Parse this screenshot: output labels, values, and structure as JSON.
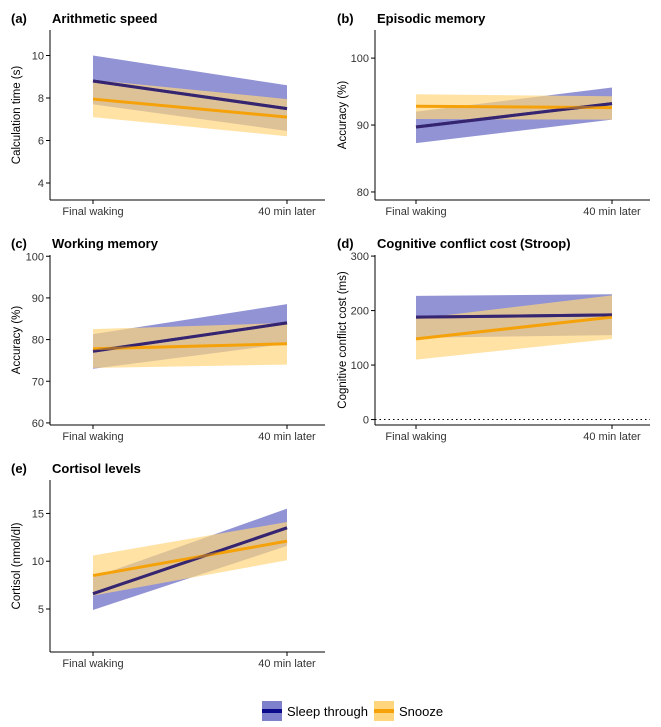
{
  "colors": {
    "sleep_line": "#0a0a8a",
    "sleep_band": "#7e80cc",
    "snooze_line": "#f5a20a",
    "snooze_band": "#ffd57e"
  },
  "legend": {
    "items": [
      {
        "key": "sleep",
        "label": "Sleep through"
      },
      {
        "key": "snooze",
        "label": "Snooze"
      }
    ]
  },
  "chart_data": [
    {
      "id": "a",
      "panel_label": "(a)",
      "title": "Arithmetic speed",
      "type": "line",
      "ylabel": "Calculation time (s)",
      "categories": [
        "Final waking",
        "40 min later"
      ],
      "ylim": [
        3.2,
        11.2
      ],
      "yticks": [
        "4",
        "6",
        "8",
        "10"
      ],
      "ytick_values": [
        4,
        6,
        8,
        10
      ],
      "series": [
        {
          "name": "Sleep through",
          "values": [
            8.8,
            7.5
          ],
          "ci_low": [
            7.7,
            6.45
          ],
          "ci_high": [
            10.0,
            8.6
          ]
        },
        {
          "name": "Snooze",
          "values": [
            7.95,
            7.1
          ],
          "ci_low": [
            7.1,
            6.2
          ],
          "ci_high": [
            8.85,
            7.95
          ]
        }
      ]
    },
    {
      "id": "b",
      "panel_label": "(b)",
      "title": "Episodic memory",
      "type": "line",
      "ylabel": "Accuracy (%)",
      "categories": [
        "Final waking",
        "40 min later"
      ],
      "ylim": [
        78.8,
        104.2
      ],
      "yticks": [
        "80",
        "90",
        "100"
      ],
      "ytick_values": [
        80,
        90,
        100
      ],
      "series": [
        {
          "name": "Sleep through",
          "values": [
            89.7,
            93.2
          ],
          "ci_low": [
            87.3,
            90.8
          ],
          "ci_high": [
            92.0,
            95.6
          ]
        },
        {
          "name": "Snooze",
          "values": [
            92.8,
            92.6
          ],
          "ci_low": [
            90.9,
            90.8
          ],
          "ci_high": [
            94.6,
            94.3
          ]
        }
      ]
    },
    {
      "id": "c",
      "panel_label": "(c)",
      "title": "Working memory",
      "type": "line",
      "ylabel": "Accuracy (%)",
      "categories": [
        "Final waking",
        "40 min later"
      ],
      "ylim": [
        59.5,
        100.3
      ],
      "yticks": [
        "60",
        "70",
        "80",
        "90",
        "100"
      ],
      "ytick_values": [
        60,
        70,
        80,
        90,
        100
      ],
      "series": [
        {
          "name": "Sleep through",
          "values": [
            77.2,
            84.0
          ],
          "ci_low": [
            73.0,
            79.0
          ],
          "ci_high": [
            81.3,
            88.5
          ]
        },
        {
          "name": "Snooze",
          "values": [
            77.8,
            79.0
          ],
          "ci_low": [
            73.2,
            74.0
          ],
          "ci_high": [
            82.5,
            84.0
          ]
        }
      ]
    },
    {
      "id": "d",
      "panel_label": "(d)",
      "title": "Cognitive conflict cost (Stroop)",
      "type": "line",
      "ylabel": "Cognitive conflict cost (ms)",
      "categories": [
        "Final waking",
        "40 min later"
      ],
      "ylim": [
        -10,
        302
      ],
      "yticks": [
        "0",
        "100",
        "200",
        "300"
      ],
      "ytick_values": [
        0,
        100,
        200,
        300
      ],
      "reference_line": 0,
      "series": [
        {
          "name": "Sleep through",
          "values": [
            188,
            192
          ],
          "ci_low": [
            150,
            155
          ],
          "ci_high": [
            227,
            230
          ]
        },
        {
          "name": "Snooze",
          "values": [
            148,
            188
          ],
          "ci_low": [
            110,
            148
          ],
          "ci_high": [
            185,
            228
          ]
        }
      ]
    },
    {
      "id": "e",
      "panel_label": "(e)",
      "title": "Cortisol levels",
      "type": "line",
      "ylabel": "Cortisol (nmol/dl)",
      "categories": [
        "Final waking",
        "40 min later"
      ],
      "ylim": [
        0.5,
        18.5
      ],
      "yticks": [
        "5",
        "10",
        "15"
      ],
      "ytick_values": [
        5,
        10,
        15
      ],
      "series": [
        {
          "name": "Sleep through",
          "values": [
            6.6,
            13.5
          ],
          "ci_low": [
            4.9,
            11.6
          ],
          "ci_high": [
            8.3,
            15.5
          ]
        },
        {
          "name": "Snooze",
          "values": [
            8.5,
            12.1
          ],
          "ci_low": [
            6.4,
            10.1
          ],
          "ci_high": [
            10.6,
            14.1
          ]
        }
      ]
    }
  ]
}
